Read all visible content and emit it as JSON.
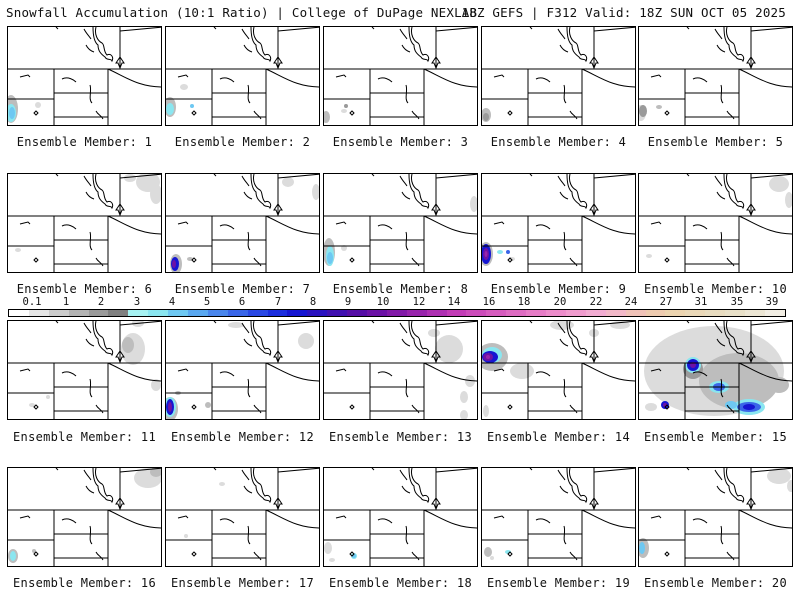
{
  "header": {
    "title_left": "Snowfall Accumulation (10:1 Ratio) | College of DuPage NEXLAB",
    "title_right": "18Z GEFS | F312 Valid: 18Z SUN OCT 05 2025"
  },
  "colorbar": {
    "ticks": [
      "0.1",
      "1",
      "2",
      "3",
      "4",
      "5",
      "6",
      "7",
      "8",
      "9",
      "10",
      "12",
      "14",
      "16",
      "18",
      "20",
      "22",
      "24",
      "27",
      "31",
      "35",
      "39"
    ],
    "colors": [
      "#ffffff",
      "#e6e6e6",
      "#cccccc",
      "#b3b3b3",
      "#9a9a9a",
      "#808080",
      "#a6f2f2",
      "#8ae6f0",
      "#6ec8f2",
      "#5aa8f0",
      "#4a86ec",
      "#3a66e8",
      "#2a48e4",
      "#1c2ede",
      "#1616d2",
      "#2a12c0",
      "#4010b0",
      "#560ea6",
      "#6c12a6",
      "#821aa8",
      "#9824ac",
      "#ae30b2",
      "#c23cb6",
      "#cc4cba",
      "#d65cbe",
      "#de6cc2",
      "#e67cc6",
      "#ec8cca",
      "#f09cce",
      "#f2acd2",
      "#f2b8c8",
      "#f0c2b8",
      "#eecbb0",
      "#ecd4b0",
      "#ead8b8",
      "#e8dcc0",
      "#e8e0c8",
      "#ece6d4",
      "#f2eee4"
    ]
  },
  "members": [
    {
      "label": "Ensemble Member: 1"
    },
    {
      "label": "Ensemble Member: 2"
    },
    {
      "label": "Ensemble Member: 3"
    },
    {
      "label": "Ensemble Member: 4"
    },
    {
      "label": "Ensemble Member: 5"
    },
    {
      "label": "Ensemble Member: 6"
    },
    {
      "label": "Ensemble Member: 7"
    },
    {
      "label": "Ensemble Member: 8"
    },
    {
      "label": "Ensemble Member: 9"
    },
    {
      "label": "Ensemble Member: 10"
    },
    {
      "label": "Ensemble Member: 11"
    },
    {
      "label": "Ensemble Member: 12"
    },
    {
      "label": "Ensemble Member: 13"
    },
    {
      "label": "Ensemble Member: 14"
    },
    {
      "label": "Ensemble Member: 15"
    },
    {
      "label": "Ensemble Member: 16"
    },
    {
      "label": "Ensemble Member: 17"
    },
    {
      "label": "Ensemble Member: 18"
    },
    {
      "label": "Ensemble Member: 19"
    },
    {
      "label": "Ensemble Member: 20"
    }
  ]
}
